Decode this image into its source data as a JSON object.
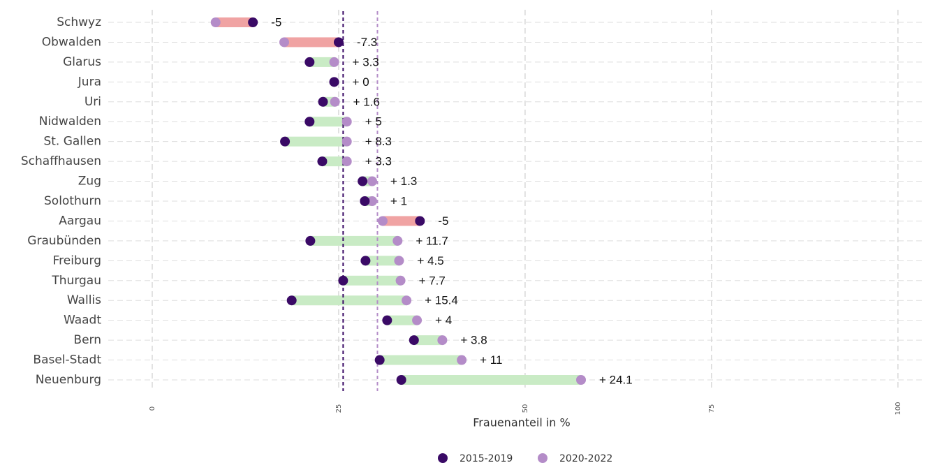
{
  "chart_data": {
    "type": "dumbbell",
    "x_label": "Frauenanteil in %",
    "categories": [
      "Schwyz",
      "Obwalden",
      "Glarus",
      "Jura",
      "Uri",
      "Nidwalden",
      "St. Gallen",
      "Schaffhausen",
      "Zug",
      "Solothurn",
      "Aargau",
      "Graubünden",
      "Freiburg",
      "Thurgau",
      "Wallis",
      "Waadt",
      "Bern",
      "Basel-Stadt",
      "Neuenburg"
    ],
    "series": [
      {
        "name": "2015-2019",
        "color": "#3a0a66",
        "values": [
          13.5,
          25,
          21.1,
          24.4,
          22.9,
          21.1,
          17.8,
          22.8,
          28.2,
          28.5,
          35.9,
          21.2,
          28.6,
          25.6,
          18.7,
          31.5,
          35.1,
          30.5,
          33.4
        ]
      },
      {
        "name": "2020-2022",
        "color": "#b48cc8",
        "values": [
          8.5,
          17.7,
          24.4,
          24.4,
          24.5,
          26.1,
          26.1,
          26.1,
          29.5,
          29.5,
          30.9,
          32.9,
          33.1,
          33.3,
          34.1,
          35.5,
          38.9,
          41.5,
          57.5
        ]
      }
    ],
    "diff_labels": [
      "-5",
      "-7.3",
      "+ 3.3",
      "+ 0",
      "+ 1.6",
      "+ 5",
      "+ 8.3",
      "+ 3.3",
      "+ 1.3",
      "+ 1",
      "-5",
      "+ 11.7",
      "+ 4.5",
      "+ 7.7",
      "+ 15.4",
      "+ 4",
      "+ 3.8",
      "+ 11",
      "+ 24.1"
    ],
    "increase_color": "#c9ebc5",
    "decrease_color": "#f0a3a3",
    "reference_lines": [
      {
        "value": 25.6,
        "color": "#3a0a66"
      },
      {
        "value": 30.2,
        "color": "#b48cc8"
      }
    ],
    "xlim": [
      -5.9,
      103.2
    ],
    "xticks": [
      0,
      25,
      50,
      75,
      100
    ],
    "grid": true,
    "legend": "bottom"
  }
}
